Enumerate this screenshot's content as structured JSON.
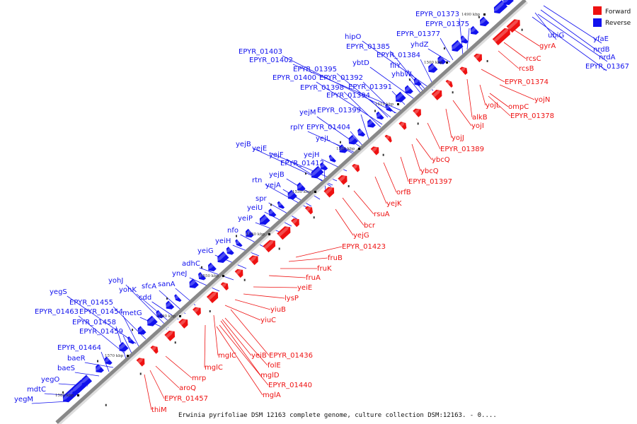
{
  "caption": "Erwinia pyrifoliae DSM 12163 complete genome, culture collection DSM:12163. - 0....",
  "colors": {
    "forward": "#ee1111",
    "reverse": "#1111ee",
    "axis": "#999999"
  },
  "legend": [
    {
      "label": "Forward",
      "color": "#ee1111"
    },
    {
      "label": "Reverse",
      "color": "#1111ee"
    }
  ],
  "ticks": [
    "1490 kbp",
    "1500 kbp",
    "1510 kbp",
    "1520 kbp",
    "1530 kbp",
    "1540 kbp",
    "1550 kbp",
    "1560 kbp",
    "1570 kbp",
    "1580 kbp"
  ],
  "reverse_labels": [
    "EPYR_01373",
    "EPYR_01375",
    "EPYR_01377",
    "hipO",
    "yhdZ",
    "EPYR_01385",
    "EPYR_01403",
    "EPYR_01384",
    "EPYR_01402",
    "fliY",
    "ybtD",
    "EPYR_01395",
    "yhbW",
    "EPYR_01400",
    "EPYR_01392",
    "EPYR_01398",
    "EPYR_01391",
    "EPYR_01394",
    "yejM",
    "EPYR_01399",
    "rplY",
    "EPYR_01404",
    "yejL",
    "yejB",
    "yejE",
    "yejH",
    "yejF",
    "EPYR_01412",
    "yejB",
    "rtn",
    "yejA",
    "spr",
    "yeiU",
    "yeiP",
    "nfo",
    "yeiH",
    "adhC",
    "yeiG",
    "yneJ",
    "yohJ",
    "sfcA",
    "sanA",
    "yohK",
    "cdd",
    "yegS",
    "EPYR_01455",
    "metG",
    "EPYR_01463",
    "EPYR_01454",
    "EPYR_01458",
    "EPYR_01459",
    "EPYR_01464",
    "baeR",
    "baeS",
    "yegO",
    "mdtC",
    "yegM",
    "ubiG",
    "yfaE",
    "nrdB",
    "nrdA",
    "EPYR_01367"
  ],
  "forward_labels": [
    "gyrA",
    "rcsC",
    "rcsB",
    "EPYR_01374",
    "yojN",
    "ompC",
    "yojL",
    "EPYR_01378",
    "alkB",
    "yojI",
    "yojJ",
    "EPYR_01389",
    "ybcQ",
    "ybcQ",
    "EPYR_01397",
    "orfB",
    "yejK",
    "rsuA",
    "bcr",
    "yejG",
    "EPYR_01423",
    "fruB",
    "fruK",
    "fruA",
    "yeiE",
    "lysP",
    "yiuB",
    "yiuC",
    "yeiB",
    "EPYR_01436",
    "folE",
    "mglC",
    "mglD",
    "mglC",
    "EPYR_01440",
    "mglA",
    "mrp",
    "aroQ",
    "EPYR_01457",
    "thiM"
  ]
}
